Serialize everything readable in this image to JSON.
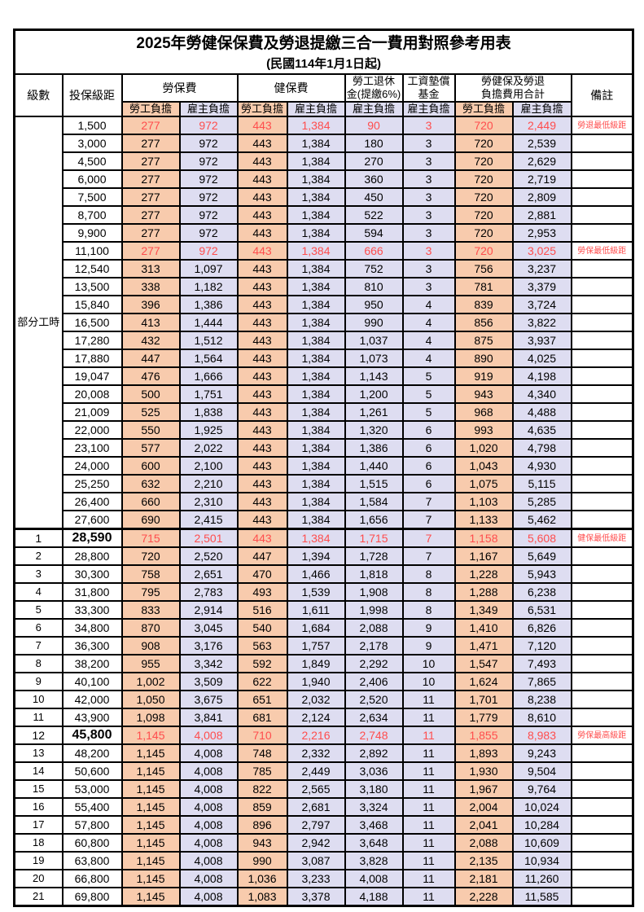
{
  "title": "2025年勞健保保費及勞退提繳三合一費用對照參考用表",
  "subtitle": "(民國114年1月1日起)",
  "columns": {
    "level": "級數",
    "bracket": "投保級距",
    "labor_insurance": "勞保費",
    "health_insurance": "健保費",
    "pension_line1": "勞工退休",
    "pension_line2": "金(提繳6%)",
    "wage_fund_line1": "工資墊償",
    "wage_fund_line2": "基金",
    "total_line1": "勞健保及勞退",
    "total_line2": "負擔費用合計",
    "employee_share": "勞工負擔",
    "employer_share": "雇主負擔",
    "remark": "備註"
  },
  "part_time_label": "部分工時",
  "part_time_rowspan": 23,
  "colors": {
    "employee_bg": "#F8CBAD",
    "employer_bg": "#DEDDF1",
    "highlight_text": "#FF4D4D",
    "border": "#000000"
  },
  "rows": [
    {
      "level": "",
      "bracket": "1,500",
      "values": [
        "277",
        "972",
        "443",
        "1,384",
        "90",
        "3",
        "720",
        "2,449"
      ],
      "remark": "勞退最低級距",
      "red": true,
      "emph": false,
      "section_start": false
    },
    {
      "level": "",
      "bracket": "3,000",
      "values": [
        "277",
        "972",
        "443",
        "1,384",
        "180",
        "3",
        "720",
        "2,539"
      ],
      "remark": "",
      "red": false,
      "emph": false,
      "section_start": false
    },
    {
      "level": "",
      "bracket": "4,500",
      "values": [
        "277",
        "972",
        "443",
        "1,384",
        "270",
        "3",
        "720",
        "2,629"
      ],
      "remark": "",
      "red": false,
      "emph": false,
      "section_start": false
    },
    {
      "level": "",
      "bracket": "6,000",
      "values": [
        "277",
        "972",
        "443",
        "1,384",
        "360",
        "3",
        "720",
        "2,719"
      ],
      "remark": "",
      "red": false,
      "emph": false,
      "section_start": false
    },
    {
      "level": "",
      "bracket": "7,500",
      "values": [
        "277",
        "972",
        "443",
        "1,384",
        "450",
        "3",
        "720",
        "2,809"
      ],
      "remark": "",
      "red": false,
      "emph": false,
      "section_start": false
    },
    {
      "level": "",
      "bracket": "8,700",
      "values": [
        "277",
        "972",
        "443",
        "1,384",
        "522",
        "3",
        "720",
        "2,881"
      ],
      "remark": "",
      "red": false,
      "emph": false,
      "section_start": false
    },
    {
      "level": "",
      "bracket": "9,900",
      "values": [
        "277",
        "972",
        "443",
        "1,384",
        "594",
        "3",
        "720",
        "2,953"
      ],
      "remark": "",
      "red": false,
      "emph": false,
      "section_start": false
    },
    {
      "level": "",
      "bracket": "11,100",
      "values": [
        "277",
        "972",
        "443",
        "1,384",
        "666",
        "3",
        "720",
        "3,025"
      ],
      "remark": "勞保最低級距",
      "red": true,
      "emph": false,
      "section_start": false
    },
    {
      "level": "",
      "bracket": "12,540",
      "values": [
        "313",
        "1,097",
        "443",
        "1,384",
        "752",
        "3",
        "756",
        "3,237"
      ],
      "remark": "",
      "red": false,
      "emph": false,
      "section_start": false
    },
    {
      "level": "",
      "bracket": "13,500",
      "values": [
        "338",
        "1,182",
        "443",
        "1,384",
        "810",
        "3",
        "781",
        "3,379"
      ],
      "remark": "",
      "red": false,
      "emph": false,
      "section_start": false
    },
    {
      "level": "",
      "bracket": "15,840",
      "values": [
        "396",
        "1,386",
        "443",
        "1,384",
        "950",
        "4",
        "839",
        "3,724"
      ],
      "remark": "",
      "red": false,
      "emph": false,
      "section_start": false
    },
    {
      "level": "",
      "bracket": "16,500",
      "values": [
        "413",
        "1,444",
        "443",
        "1,384",
        "990",
        "4",
        "856",
        "3,822"
      ],
      "remark": "",
      "red": false,
      "emph": false,
      "section_start": false
    },
    {
      "level": "",
      "bracket": "17,280",
      "values": [
        "432",
        "1,512",
        "443",
        "1,384",
        "1,037",
        "4",
        "875",
        "3,937"
      ],
      "remark": "",
      "red": false,
      "emph": false,
      "section_start": false
    },
    {
      "level": "",
      "bracket": "17,880",
      "values": [
        "447",
        "1,564",
        "443",
        "1,384",
        "1,073",
        "4",
        "890",
        "4,025"
      ],
      "remark": "",
      "red": false,
      "emph": false,
      "section_start": false
    },
    {
      "level": "",
      "bracket": "19,047",
      "values": [
        "476",
        "1,666",
        "443",
        "1,384",
        "1,143",
        "5",
        "919",
        "4,198"
      ],
      "remark": "",
      "red": false,
      "emph": false,
      "section_start": false
    },
    {
      "level": "",
      "bracket": "20,008",
      "values": [
        "500",
        "1,751",
        "443",
        "1,384",
        "1,200",
        "5",
        "943",
        "4,340"
      ],
      "remark": "",
      "red": false,
      "emph": false,
      "section_start": false
    },
    {
      "level": "",
      "bracket": "21,009",
      "values": [
        "525",
        "1,838",
        "443",
        "1,384",
        "1,261",
        "5",
        "968",
        "4,488"
      ],
      "remark": "",
      "red": false,
      "emph": false,
      "section_start": false
    },
    {
      "level": "",
      "bracket": "22,000",
      "values": [
        "550",
        "1,925",
        "443",
        "1,384",
        "1,320",
        "6",
        "993",
        "4,635"
      ],
      "remark": "",
      "red": false,
      "emph": false,
      "section_start": false
    },
    {
      "level": "",
      "bracket": "23,100",
      "values": [
        "577",
        "2,022",
        "443",
        "1,384",
        "1,386",
        "6",
        "1,020",
        "4,798"
      ],
      "remark": "",
      "red": false,
      "emph": false,
      "section_start": false
    },
    {
      "level": "",
      "bracket": "24,000",
      "values": [
        "600",
        "2,100",
        "443",
        "1,384",
        "1,440",
        "6",
        "1,043",
        "4,930"
      ],
      "remark": "",
      "red": false,
      "emph": false,
      "section_start": false
    },
    {
      "level": "",
      "bracket": "25,250",
      "values": [
        "632",
        "2,210",
        "443",
        "1,384",
        "1,515",
        "6",
        "1,075",
        "5,115"
      ],
      "remark": "",
      "red": false,
      "emph": false,
      "section_start": false
    },
    {
      "level": "",
      "bracket": "26,400",
      "values": [
        "660",
        "2,310",
        "443",
        "1,384",
        "1,584",
        "7",
        "1,103",
        "5,285"
      ],
      "remark": "",
      "red": false,
      "emph": false,
      "section_start": false
    },
    {
      "level": "",
      "bracket": "27,600",
      "values": [
        "690",
        "2,415",
        "443",
        "1,384",
        "1,656",
        "7",
        "1,133",
        "5,462"
      ],
      "remark": "",
      "red": false,
      "emph": false,
      "section_start": false
    },
    {
      "level": "1",
      "bracket": "28,590",
      "values": [
        "715",
        "2,501",
        "443",
        "1,384",
        "1,715",
        "7",
        "1,158",
        "5,608"
      ],
      "remark": "健保最低級距",
      "red": true,
      "emph": true,
      "section_start": true
    },
    {
      "level": "2",
      "bracket": "28,800",
      "values": [
        "720",
        "2,520",
        "447",
        "1,394",
        "1,728",
        "7",
        "1,167",
        "5,649"
      ],
      "remark": "",
      "red": false,
      "emph": false,
      "section_start": false
    },
    {
      "level": "3",
      "bracket": "30,300",
      "values": [
        "758",
        "2,651",
        "470",
        "1,466",
        "1,818",
        "8",
        "1,228",
        "5,943"
      ],
      "remark": "",
      "red": false,
      "emph": false,
      "section_start": false
    },
    {
      "level": "4",
      "bracket": "31,800",
      "values": [
        "795",
        "2,783",
        "493",
        "1,539",
        "1,908",
        "8",
        "1,288",
        "6,238"
      ],
      "remark": "",
      "red": false,
      "emph": false,
      "section_start": false
    },
    {
      "level": "5",
      "bracket": "33,300",
      "values": [
        "833",
        "2,914",
        "516",
        "1,611",
        "1,998",
        "8",
        "1,349",
        "6,531"
      ],
      "remark": "",
      "red": false,
      "emph": false,
      "section_start": false
    },
    {
      "level": "6",
      "bracket": "34,800",
      "values": [
        "870",
        "3,045",
        "540",
        "1,684",
        "2,088",
        "9",
        "1,410",
        "6,826"
      ],
      "remark": "",
      "red": false,
      "emph": false,
      "section_start": false
    },
    {
      "level": "7",
      "bracket": "36,300",
      "values": [
        "908",
        "3,176",
        "563",
        "1,757",
        "2,178",
        "9",
        "1,471",
        "7,120"
      ],
      "remark": "",
      "red": false,
      "emph": false,
      "section_start": false
    },
    {
      "level": "8",
      "bracket": "38,200",
      "values": [
        "955",
        "3,342",
        "592",
        "1,849",
        "2,292",
        "10",
        "1,547",
        "7,493"
      ],
      "remark": "",
      "red": false,
      "emph": false,
      "section_start": false
    },
    {
      "level": "9",
      "bracket": "40,100",
      "values": [
        "1,002",
        "3,509",
        "622",
        "1,940",
        "2,406",
        "10",
        "1,624",
        "7,865"
      ],
      "remark": "",
      "red": false,
      "emph": false,
      "section_start": false
    },
    {
      "level": "10",
      "bracket": "42,000",
      "values": [
        "1,050",
        "3,675",
        "651",
        "2,032",
        "2,520",
        "11",
        "1,701",
        "8,238"
      ],
      "remark": "",
      "red": false,
      "emph": false,
      "section_start": false
    },
    {
      "level": "11",
      "bracket": "43,900",
      "values": [
        "1,098",
        "3,841",
        "681",
        "2,124",
        "2,634",
        "11",
        "1,779",
        "8,610"
      ],
      "remark": "",
      "red": false,
      "emph": false,
      "section_start": false
    },
    {
      "level": "12",
      "bracket": "45,800",
      "values": [
        "1,145",
        "4,008",
        "710",
        "2,216",
        "2,748",
        "11",
        "1,855",
        "8,983"
      ],
      "remark": "勞保最高級距",
      "red": true,
      "emph": true,
      "section_start": false
    },
    {
      "level": "13",
      "bracket": "48,200",
      "values": [
        "1,145",
        "4,008",
        "748",
        "2,332",
        "2,892",
        "11",
        "1,893",
        "9,243"
      ],
      "remark": "",
      "red": false,
      "emph": false,
      "section_start": false
    },
    {
      "level": "14",
      "bracket": "50,600",
      "values": [
        "1,145",
        "4,008",
        "785",
        "2,449",
        "3,036",
        "11",
        "1,930",
        "9,504"
      ],
      "remark": "",
      "red": false,
      "emph": false,
      "section_start": false
    },
    {
      "level": "15",
      "bracket": "53,000",
      "values": [
        "1,145",
        "4,008",
        "822",
        "2,565",
        "3,180",
        "11",
        "1,967",
        "9,764"
      ],
      "remark": "",
      "red": false,
      "emph": false,
      "section_start": false
    },
    {
      "level": "16",
      "bracket": "55,400",
      "values": [
        "1,145",
        "4,008",
        "859",
        "2,681",
        "3,324",
        "11",
        "2,004",
        "10,024"
      ],
      "remark": "",
      "red": false,
      "emph": false,
      "section_start": false
    },
    {
      "level": "17",
      "bracket": "57,800",
      "values": [
        "1,145",
        "4,008",
        "896",
        "2,797",
        "3,468",
        "11",
        "2,041",
        "10,284"
      ],
      "remark": "",
      "red": false,
      "emph": false,
      "section_start": false
    },
    {
      "level": "18",
      "bracket": "60,800",
      "values": [
        "1,145",
        "4,008",
        "943",
        "2,942",
        "3,648",
        "11",
        "2,088",
        "10,609"
      ],
      "remark": "",
      "red": false,
      "emph": false,
      "section_start": false
    },
    {
      "level": "19",
      "bracket": "63,800",
      "values": [
        "1,145",
        "4,008",
        "990",
        "3,087",
        "3,828",
        "11",
        "2,135",
        "10,934"
      ],
      "remark": "",
      "red": false,
      "emph": false,
      "section_start": false
    },
    {
      "level": "20",
      "bracket": "66,800",
      "values": [
        "1,145",
        "4,008",
        "1,036",
        "3,233",
        "4,008",
        "11",
        "2,181",
        "11,260"
      ],
      "remark": "",
      "red": false,
      "emph": false,
      "section_start": false
    },
    {
      "level": "21",
      "bracket": "69,800",
      "values": [
        "1,145",
        "4,008",
        "1,083",
        "3,378",
        "4,188",
        "11",
        "2,228",
        "11,585"
      ],
      "remark": "",
      "red": false,
      "emph": false,
      "section_start": false
    }
  ]
}
